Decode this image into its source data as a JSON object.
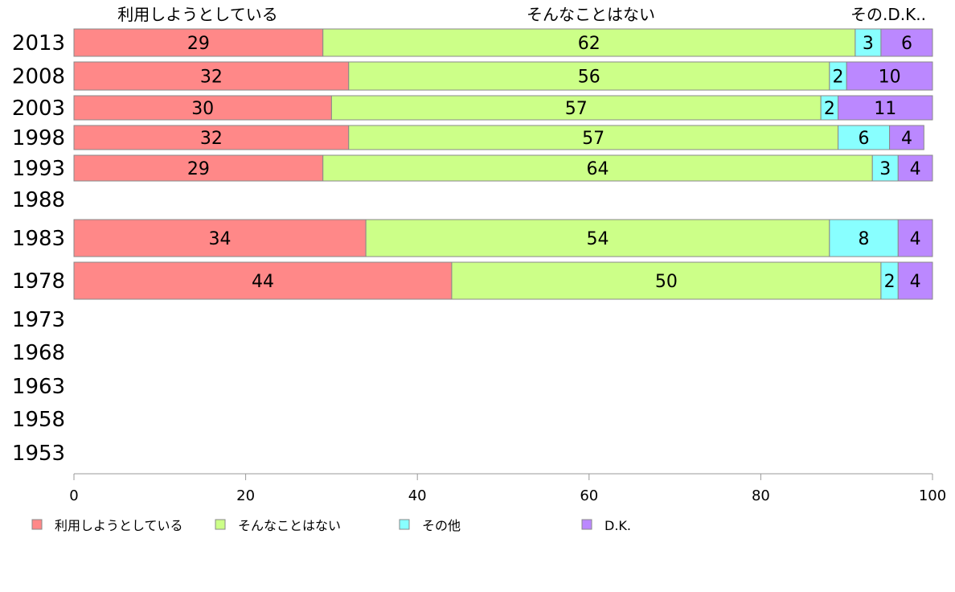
{
  "chart_data": {
    "type": "bar",
    "orientation": "horizontal",
    "stacked": true,
    "xlim": [
      0,
      100
    ],
    "xticks": [
      "0",
      "20",
      "40",
      "60",
      "80",
      "100"
    ],
    "top_labels": [
      "利用しようとしている",
      "そんなことはない",
      "その.D.K.."
    ],
    "categories": [
      "2013",
      "2008",
      "2003",
      "1998",
      "1993",
      "1988",
      "1983",
      "1978",
      "1973",
      "1968",
      "1963",
      "1958",
      "1953"
    ],
    "series": [
      {
        "name": "利用しようとしている",
        "color": "#ff8888",
        "values": [
          29,
          32,
          30,
          32,
          29,
          null,
          34,
          44,
          null,
          null,
          null,
          null,
          null
        ]
      },
      {
        "name": "そんなことはない",
        "color": "#ccff88",
        "values": [
          62,
          56,
          57,
          57,
          64,
          null,
          54,
          50,
          null,
          null,
          null,
          null,
          null
        ]
      },
      {
        "name": "その他",
        "color": "#88ffff",
        "values": [
          3,
          2,
          2,
          6,
          3,
          null,
          8,
          2,
          null,
          null,
          null,
          null,
          null
        ]
      },
      {
        "name": "D.K.",
        "color": "#bb88ff",
        "values": [
          6,
          10,
          11,
          4,
          4,
          null,
          4,
          4,
          null,
          null,
          null,
          null,
          null
        ]
      }
    ],
    "grid": false,
    "legend_position": "bottom"
  }
}
